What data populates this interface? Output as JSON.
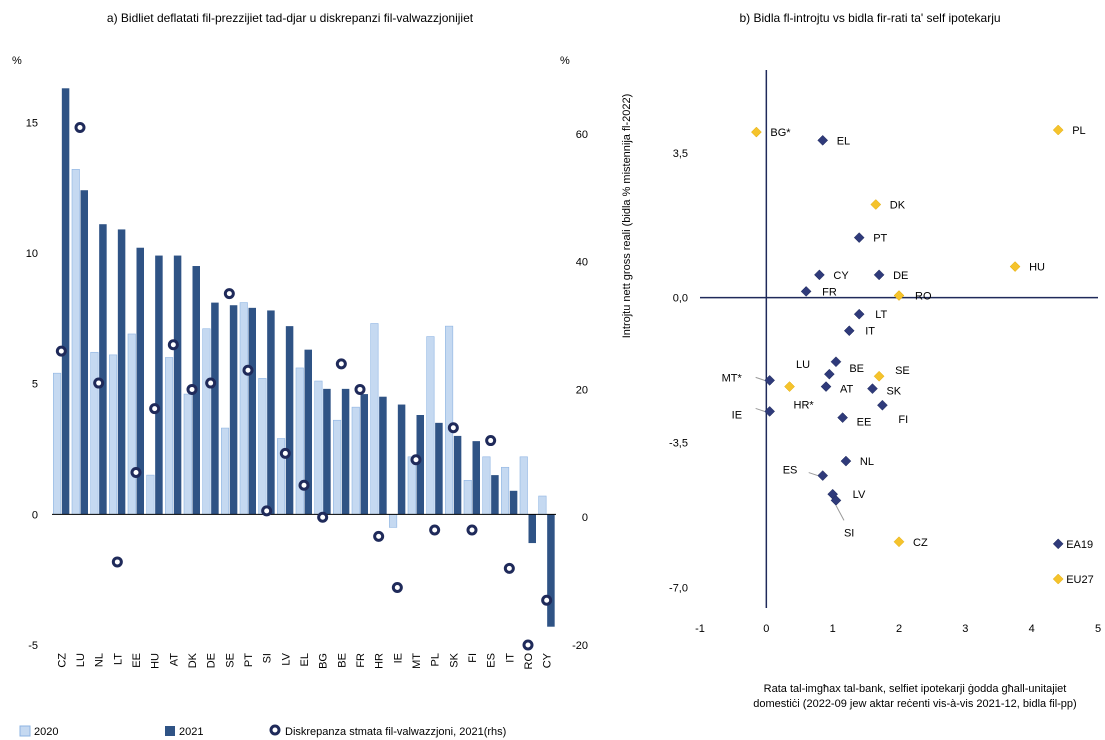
{
  "chart_data": [
    {
      "type": "bar",
      "title": "a) Bidliet deflatati fil-prezzijiet tad-djar u diskrepanzi fil-valwazzjonijiet",
      "y_unit_left": "%",
      "y_unit_right": "%",
      "ylim": [
        -5,
        17
      ],
      "ylim_right": [
        -20,
        70
      ],
      "yticks": [
        "-5",
        "0",
        "5",
        "10",
        "15"
      ],
      "yticks_right": [
        "-20",
        "0",
        "20",
        "40",
        "60"
      ],
      "categories": [
        "CZ",
        "LU",
        "NL",
        "LT",
        "EE",
        "HU",
        "AT",
        "DK",
        "DE",
        "SE",
        "PT",
        "SI",
        "LV",
        "EL",
        "BG",
        "BE",
        "FR",
        "HR",
        "IE",
        "MT",
        "PL",
        "SK",
        "FI",
        "ES",
        "IT",
        "RO",
        "CY"
      ],
      "series": [
        {
          "name": "2020",
          "color": "#c5d9f1",
          "values": [
            5.4,
            13.2,
            6.2,
            6.1,
            6.9,
            1.5,
            6.0,
            4.6,
            7.1,
            3.3,
            8.1,
            5.2,
            2.9,
            5.6,
            5.1,
            3.6,
            4.1,
            7.3,
            -0.5,
            2.2,
            6.8,
            7.2,
            1.3,
            2.2,
            1.8,
            2.2,
            0.7
          ]
        },
        {
          "name": "2021",
          "color": "#2f5385",
          "values": [
            16.3,
            12.4,
            11.1,
            10.9,
            10.2,
            9.9,
            9.9,
            9.5,
            8.1,
            8.0,
            7.9,
            7.8,
            7.2,
            6.3,
            4.8,
            4.8,
            4.6,
            4.5,
            4.2,
            3.8,
            3.5,
            3.0,
            2.8,
            1.5,
            0.9,
            -1.1,
            -4.3
          ]
        },
        {
          "name": "Diskrepanza stmata fil-valwazzjoni, 2021(rhs)",
          "axis": "right",
          "values": [
            26,
            61,
            21,
            -7,
            7,
            17,
            27,
            20,
            21,
            35,
            23,
            1,
            10,
            5,
            0,
            24,
            20,
            -3,
            -11,
            9,
            -2,
            14,
            -2,
            12,
            -8,
            -20,
            -13
          ]
        }
      ]
    },
    {
      "type": "scatter",
      "title": "b) Bidla fl-introjtu vs bidla fir-rati ta' self ipotekarju",
      "xlabel": "Rata tal-imgħax tal-bank, selfiet ipotekarji ġodda għall-unitajiet domestiċi (2022-09 jew aktar reċenti vis-à-vis 2021-12, bidla fil-pp)",
      "xlabel_lines": [
        "Rata tal-imgħax tal-bank, selfiet ipotekarji ġodda għall-unitajiet",
        "domestiċi (2022-09 jew aktar reċenti vis-à-vis 2021-12, bidla fil-pp)"
      ],
      "ylabel": "Introjtu nett gross reali (bidla % mistennija fl-2022)",
      "xlim": [
        -1,
        5
      ],
      "ylim": [
        -7.5,
        5.5
      ],
      "xticks": [
        "-1",
        "0",
        "1",
        "2",
        "3",
        "4",
        "5"
      ],
      "yticks": [
        "3,5",
        "0,0",
        "-3,5",
        "-7,0"
      ],
      "points": [
        {
          "label": "BG*",
          "x": -0.15,
          "y": 4.0,
          "color": "#f5c32c"
        },
        {
          "label": "EL",
          "x": 0.85,
          "y": 3.8,
          "color": "#2f3a7a"
        },
        {
          "label": "PL",
          "x": 4.4,
          "y": 4.05,
          "color": "#f5c32c"
        },
        {
          "label": "DK",
          "x": 1.65,
          "y": 2.25,
          "color": "#f5c32c"
        },
        {
          "label": "PT",
          "x": 1.4,
          "y": 1.45,
          "color": "#2f3a7a"
        },
        {
          "label": "CY",
          "x": 0.8,
          "y": 0.55,
          "color": "#2f3a7a"
        },
        {
          "label": "DE",
          "x": 1.7,
          "y": 0.55,
          "color": "#2f3a7a"
        },
        {
          "label": "HU",
          "x": 3.75,
          "y": 0.75,
          "color": "#f5c32c"
        },
        {
          "label": "FR",
          "x": 0.6,
          "y": 0.15,
          "color": "#2f3a7a"
        },
        {
          "label": "RO",
          "x": 2.0,
          "y": 0.05,
          "color": "#f5c32c"
        },
        {
          "label": "LT",
          "x": 1.4,
          "y": -0.4,
          "color": "#2f3a7a"
        },
        {
          "label": "IT",
          "x": 1.25,
          "y": -0.8,
          "color": "#2f3a7a"
        },
        {
          "label": "LU",
          "x": 1.05,
          "y": -1.55,
          "color": "#2f3a7a"
        },
        {
          "label": "BE",
          "x": 0.95,
          "y": -1.85,
          "color": "#2f3a7a"
        },
        {
          "label": "SE",
          "x": 1.7,
          "y": -1.9,
          "color": "#f5c32c"
        },
        {
          "label": "MT*",
          "x": 0.05,
          "y": -2.0,
          "color": "#2f3a7a"
        },
        {
          "label": "HR*",
          "x": 0.35,
          "y": -2.15,
          "color": "#f5c32c"
        },
        {
          "label": "AT",
          "x": 0.9,
          "y": -2.15,
          "color": "#2f3a7a"
        },
        {
          "label": "SK",
          "x": 1.6,
          "y": -2.2,
          "color": "#2f3a7a"
        },
        {
          "label": "FI",
          "x": 1.75,
          "y": -2.6,
          "color": "#2f3a7a"
        },
        {
          "label": "IE",
          "x": 0.05,
          "y": -2.75,
          "color": "#2f3a7a"
        },
        {
          "label": "EE",
          "x": 1.15,
          "y": -2.9,
          "color": "#2f3a7a"
        },
        {
          "label": "NL",
          "x": 1.2,
          "y": -3.95,
          "color": "#2f3a7a"
        },
        {
          "label": "ES",
          "x": 0.85,
          "y": -4.3,
          "color": "#2f3a7a"
        },
        {
          "label": "LV",
          "x": 1.0,
          "y": -4.75,
          "color": "#2f3a7a"
        },
        {
          "label": "SI",
          "x": 1.05,
          "y": -4.9,
          "color": "#2f3a7a"
        },
        {
          "label": "CZ",
          "x": 2.0,
          "y": -5.9,
          "color": "#f5c32c"
        },
        {
          "label": "EA19",
          "x": 4.4,
          "y": -5.95,
          "color": "#2f3a7a"
        },
        {
          "label": "EU27",
          "x": 4.4,
          "y": -6.8,
          "color": "#f5c32c"
        }
      ]
    }
  ]
}
